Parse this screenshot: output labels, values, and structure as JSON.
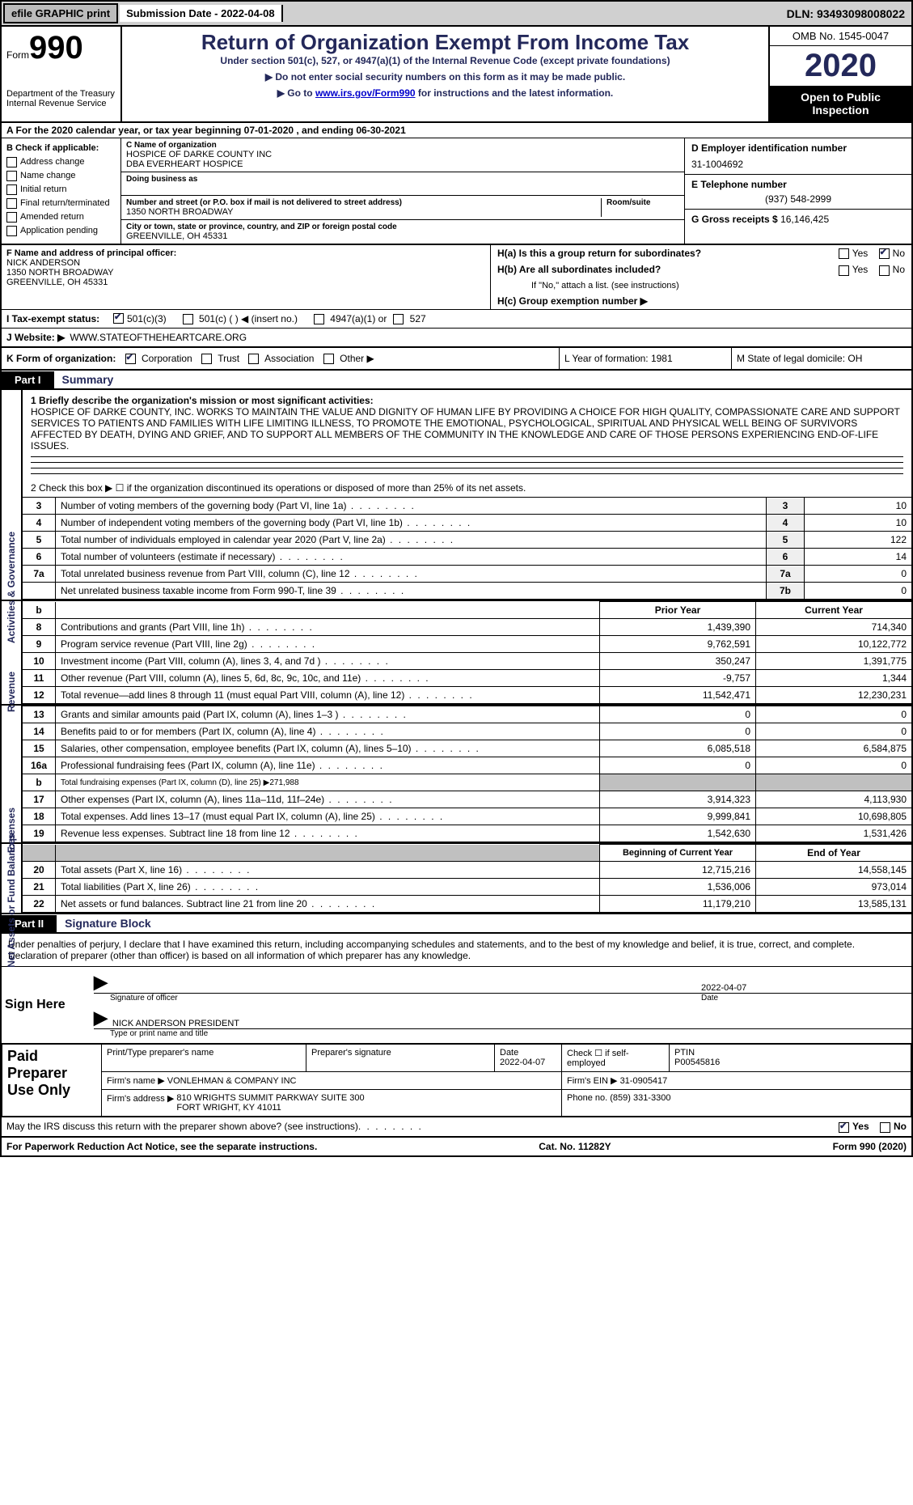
{
  "topbar": {
    "efile_btn": "efile GRAPHIC print",
    "submission_date_label": "Submission Date - 2022-04-08",
    "dln": "DLN: 93493098008022"
  },
  "header": {
    "form_label": "Form",
    "form_number": "990",
    "dept1": "Department of the Treasury",
    "dept2": "Internal Revenue Service",
    "title": "Return of Organization Exempt From Income Tax",
    "subtitle": "Under section 501(c), 527, or 4947(a)(1) of the Internal Revenue Code (except private foundations)",
    "note1": "▶ Do not enter social security numbers on this form as it may be made public.",
    "note2_pre": "▶ Go to ",
    "note2_link": "www.irs.gov/Form990",
    "note2_post": " for instructions and the latest information.",
    "omb": "OMB No. 1545-0047",
    "year": "2020",
    "open_pub": "Open to Public Inspection"
  },
  "lineA": "A For the 2020 calendar year, or tax year beginning 07-01-2020   , and ending 06-30-2021",
  "boxB": {
    "title": "B Check if applicable:",
    "opts": [
      "Address change",
      "Name change",
      "Initial return",
      "Final return/terminated",
      "Amended return",
      "Application pending"
    ]
  },
  "boxC": {
    "name_label": "C Name of organization",
    "name": "HOSPICE OF DARKE COUNTY INC",
    "dba": "DBA EVERHEART HOSPICE",
    "dba_label": "Doing business as",
    "street_label": "Number and street (or P.O. box if mail is not delivered to street address)",
    "room_label": "Room/suite",
    "street": "1350 NORTH BROADWAY",
    "city_label": "City or town, state or province, country, and ZIP or foreign postal code",
    "city": "GREENVILLE, OH  45331"
  },
  "boxD": {
    "label": "D Employer identification number",
    "val": "31-1004692"
  },
  "boxE": {
    "label": "E Telephone number",
    "val": "(937) 548-2999"
  },
  "boxG": {
    "label": "G Gross receipts $",
    "val": "16,146,425"
  },
  "boxF": {
    "label": "F  Name and address of principal officer:",
    "name": "NICK ANDERSON",
    "addr1": "1350 NORTH BROADWAY",
    "addr2": "GREENVILLE, OH  45331"
  },
  "boxH": {
    "ha": "H(a)  Is this a group return for subordinates?",
    "hb": "H(b)  Are all subordinates included?",
    "hb_note": "If \"No,\" attach a list. (see instructions)",
    "hc": "H(c)  Group exemption number ▶",
    "yes": "Yes",
    "no": "No"
  },
  "rowI": {
    "label": "I   Tax-exempt status:",
    "o1": "501(c)(3)",
    "o2": "501(c) (  ) ◀ (insert no.)",
    "o3": "4947(a)(1) or",
    "o4": "527"
  },
  "rowJ": {
    "label": "J   Website: ▶",
    "val": "WWW.STATEOFTHEHEARTCARE.ORG"
  },
  "rowK": {
    "label": "K Form of organization:",
    "corp": "Corporation",
    "trust": "Trust",
    "assoc": "Association",
    "other": "Other ▶",
    "L": "L Year of formation: 1981",
    "M": "M State of legal domicile: OH"
  },
  "part1": {
    "tag": "Part I",
    "title": "Summary"
  },
  "vtabs": {
    "gov": "Activities & Governance",
    "rev": "Revenue",
    "exp": "Expenses",
    "net": "Net Assets or Fund Balances"
  },
  "mission": {
    "label": "1   Briefly describe the organization's mission or most significant activities:",
    "text": "HOSPICE OF DARKE COUNTY, INC. WORKS TO MAINTAIN THE VALUE AND DIGNITY OF HUMAN LIFE BY PROVIDING A CHOICE FOR HIGH QUALITY, COMPASSIONATE CARE AND SUPPORT SERVICES TO PATIENTS AND FAMILIES WITH LIFE LIMITING ILLNESS, TO PROMOTE THE EMOTIONAL, PSYCHOLOGICAL, SPIRITUAL AND PHYSICAL WELL BEING OF SURVIVORS AFFECTED BY DEATH, DYING AND GRIEF, AND TO SUPPORT ALL MEMBERS OF THE COMMUNITY IN THE KNOWLEDGE AND CARE OF THOSE PERSONS EXPERIENCING END-OF-LIFE ISSUES."
  },
  "govlines": {
    "l2": "2    Check this box ▶ ☐  if the organization discontinued its operations or disposed of more than 25% of its net assets.",
    "rows": [
      {
        "n": "3",
        "t": "Number of voting members of the governing body (Part VI, line 1a)",
        "k": "3",
        "v": "10"
      },
      {
        "n": "4",
        "t": "Number of independent voting members of the governing body (Part VI, line 1b)",
        "k": "4",
        "v": "10"
      },
      {
        "n": "5",
        "t": "Total number of individuals employed in calendar year 2020 (Part V, line 2a)",
        "k": "5",
        "v": "122"
      },
      {
        "n": "6",
        "t": "Total number of volunteers (estimate if necessary)",
        "k": "6",
        "v": "14"
      },
      {
        "n": "7a",
        "t": "Total unrelated business revenue from Part VIII, column (C), line 12",
        "k": "7a",
        "v": "0"
      },
      {
        "n": "",
        "t": "Net unrelated business taxable income from Form 990-T, line 39",
        "k": "7b",
        "v": "0"
      }
    ]
  },
  "twoColHeader": {
    "b": "b",
    "prior": "Prior Year",
    "curr": "Current Year"
  },
  "revenue": [
    {
      "n": "8",
      "t": "Contributions and grants (Part VIII, line 1h)",
      "p": "1,439,390",
      "c": "714,340"
    },
    {
      "n": "9",
      "t": "Program service revenue (Part VIII, line 2g)",
      "p": "9,762,591",
      "c": "10,122,772"
    },
    {
      "n": "10",
      "t": "Investment income (Part VIII, column (A), lines 3, 4, and 7d )",
      "p": "350,247",
      "c": "1,391,775"
    },
    {
      "n": "11",
      "t": "Other revenue (Part VIII, column (A), lines 5, 6d, 8c, 9c, 10c, and 11e)",
      "p": "-9,757",
      "c": "1,344"
    },
    {
      "n": "12",
      "t": "Total revenue—add lines 8 through 11 (must equal Part VIII, column (A), line 12)",
      "p": "11,542,471",
      "c": "12,230,231"
    }
  ],
  "expenses": [
    {
      "n": "13",
      "t": "Grants and similar amounts paid (Part IX, column (A), lines 1–3 )",
      "p": "0",
      "c": "0"
    },
    {
      "n": "14",
      "t": "Benefits paid to or for members (Part IX, column (A), line 4)",
      "p": "0",
      "c": "0"
    },
    {
      "n": "15",
      "t": "Salaries, other compensation, employee benefits (Part IX, column (A), lines 5–10)",
      "p": "6,085,518",
      "c": "6,584,875"
    },
    {
      "n": "16a",
      "t": "Professional fundraising fees (Part IX, column (A), line 11e)",
      "p": "0",
      "c": "0"
    },
    {
      "n": "b",
      "t": "Total fundraising expenses (Part IX, column (D), line 25) ▶271,988",
      "p": "",
      "c": "",
      "shade": true,
      "small": true
    },
    {
      "n": "17",
      "t": "Other expenses (Part IX, column (A), lines 11a–11d, 11f–24e)",
      "p": "3,914,323",
      "c": "4,113,930"
    },
    {
      "n": "18",
      "t": "Total expenses. Add lines 13–17 (must equal Part IX, column (A), line 25)",
      "p": "9,999,841",
      "c": "10,698,805"
    },
    {
      "n": "19",
      "t": "Revenue less expenses. Subtract line 18 from line 12",
      "p": "1,542,630",
      "c": "1,531,426"
    }
  ],
  "netHeader": {
    "prior": "Beginning of Current Year",
    "curr": "End of Year"
  },
  "net": [
    {
      "n": "20",
      "t": "Total assets (Part X, line 16)",
      "p": "12,715,216",
      "c": "14,558,145"
    },
    {
      "n": "21",
      "t": "Total liabilities (Part X, line 26)",
      "p": "1,536,006",
      "c": "973,014"
    },
    {
      "n": "22",
      "t": "Net assets or fund balances. Subtract line 21 from line 20",
      "p": "11,179,210",
      "c": "13,585,131"
    }
  ],
  "part2": {
    "tag": "Part II",
    "title": "Signature Block"
  },
  "penalties": "Under penalties of perjury, I declare that I have examined this return, including accompanying schedules and statements, and to the best of my knowledge and belief, it is true, correct, and complete. Declaration of preparer (other than officer) is based on all information of which preparer has any knowledge.",
  "sign": {
    "here": "Sign Here",
    "sig_officer": "Signature of officer",
    "date": "Date",
    "date_val": "2022-04-07",
    "name_title": "NICK ANDERSON  PRESIDENT",
    "type_label": "Type or print name and title"
  },
  "prep": {
    "left": "Paid Preparer Use Only",
    "h_name": "Print/Type preparer's name",
    "h_sig": "Preparer's signature",
    "h_date": "Date",
    "date_val": "2022-04-07",
    "check_label": "Check ☐ if self-employed",
    "ptin_label": "PTIN",
    "ptin": "P00545816",
    "firm_name_label": "Firm's name    ▶",
    "firm_name": "VONLEHMAN & COMPANY INC",
    "firm_ein_label": "Firm's EIN ▶",
    "firm_ein": "31-0905417",
    "firm_addr_label": "Firm's address ▶",
    "firm_addr": "810 WRIGHTS SUMMIT PARKWAY SUITE 300\nFORT WRIGHT, KY  41011",
    "phone_label": "Phone no.",
    "phone": "(859) 331-3300"
  },
  "discuss": {
    "q": "May the IRS discuss this return with the preparer shown above? (see instructions)",
    "yes": "Yes",
    "no": "No"
  },
  "footer": {
    "left": "For Paperwork Reduction Act Notice, see the separate instructions.",
    "mid": "Cat. No. 11282Y",
    "right": "Form 990 (2020)"
  }
}
